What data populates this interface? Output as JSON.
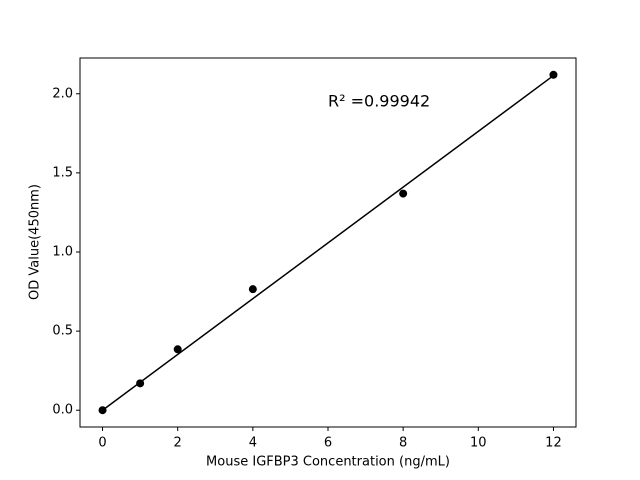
{
  "chart_data": {
    "type": "scatter",
    "x_label": "Mouse IGFBP3 Concentration (ng/mL)",
    "y_label": "OD Value(450nm)",
    "annotation": "R² =0.99942",
    "series": [
      {
        "color": "#000000",
        "x": [
          0,
          1,
          2,
          4,
          8,
          12
        ],
        "values": [
          0.0,
          0.17,
          0.385,
          0.765,
          1.369,
          2.12
        ]
      }
    ],
    "fit_line": {
      "color": "#000000",
      "x": [
        0,
        12
      ],
      "values": [
        0.0,
        2.115
      ]
    },
    "xlim": [
      -0.6,
      12.6
    ],
    "ylim": [
      -0.106,
      2.226
    ],
    "xticks": [
      0,
      2,
      4,
      6,
      8,
      10,
      12
    ],
    "yticks": [
      {
        "value": 0,
        "label": "0.0"
      },
      0.5,
      {
        "value": 1,
        "label": "1.0"
      },
      1.5,
      {
        "value": 2,
        "label": "2.0"
      }
    ]
  }
}
